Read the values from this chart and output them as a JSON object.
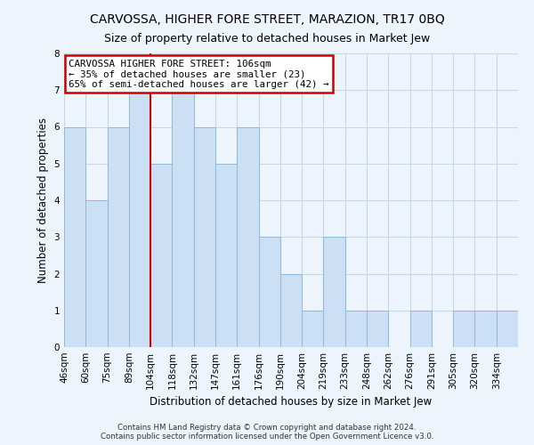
{
  "title": "CARVOSSA, HIGHER FORE STREET, MARAZION, TR17 0BQ",
  "subtitle": "Size of property relative to detached houses in Market Jew",
  "xlabel": "Distribution of detached houses by size in Market Jew",
  "ylabel": "Number of detached properties",
  "categories": [
    "46sqm",
    "60sqm",
    "75sqm",
    "89sqm",
    "104sqm",
    "118sqm",
    "132sqm",
    "147sqm",
    "161sqm",
    "176sqm",
    "190sqm",
    "204sqm",
    "219sqm",
    "233sqm",
    "248sqm",
    "262sqm",
    "276sqm",
    "291sqm",
    "305sqm",
    "320sqm",
    "334sqm"
  ],
  "values": [
    6,
    4,
    6,
    7,
    5,
    7,
    6,
    5,
    6,
    3,
    2,
    1,
    3,
    1,
    1,
    0,
    1,
    0,
    1,
    1,
    1
  ],
  "bar_color": "#cce0f5",
  "bar_edge_color": "#90b8d8",
  "vline_x_index": 4,
  "vline_color": "#cc0000",
  "annotation_text": "CARVOSSA HIGHER FORE STREET: 106sqm\n← 35% of detached houses are smaller (23)\n65% of semi-detached houses are larger (42) →",
  "annotation_box_edgecolor": "#cc0000",
  "annotation_facecolor": "white",
  "ylim": [
    0,
    8
  ],
  "yticks": [
    0,
    1,
    2,
    3,
    4,
    5,
    6,
    7,
    8
  ],
  "footer_line1": "Contains HM Land Registry data © Crown copyright and database right 2024.",
  "footer_line2": "Contains public sector information licensed under the Open Government Licence v3.0.",
  "bg_color": "#eef4fc",
  "plot_bg_color": "#eef4fc",
  "grid_color": "#c8d8e8"
}
